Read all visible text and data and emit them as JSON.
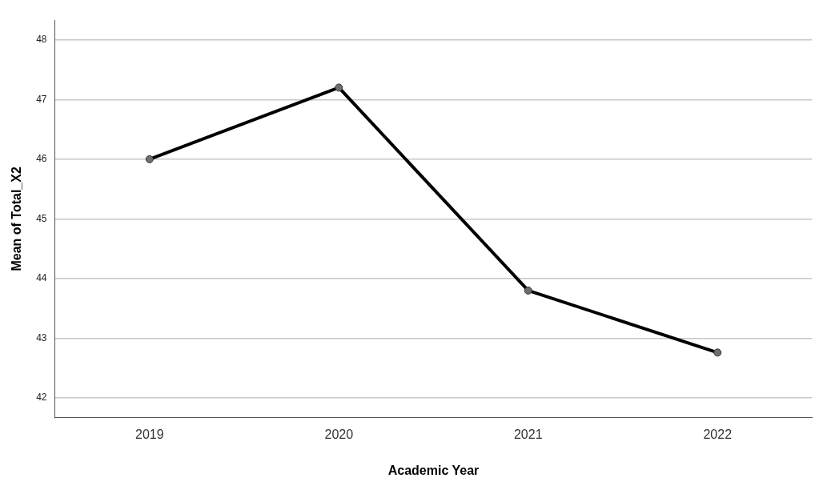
{
  "chart_data": {
    "type": "line",
    "xlabel": "Academic Year",
    "ylabel": "Mean of Total_X2",
    "categories": [
      "2019",
      "2020",
      "2021",
      "2022"
    ],
    "series": [
      {
        "color": "#000000",
        "values": [
          46.0,
          47.2,
          43.8,
          42.76
        ]
      }
    ],
    "ylim": [
      41.67,
      48.33
    ],
    "yticks": [
      42,
      43,
      44,
      45,
      46,
      47,
      48
    ],
    "grid": "y",
    "marker": "circle",
    "line_style": "solid"
  }
}
